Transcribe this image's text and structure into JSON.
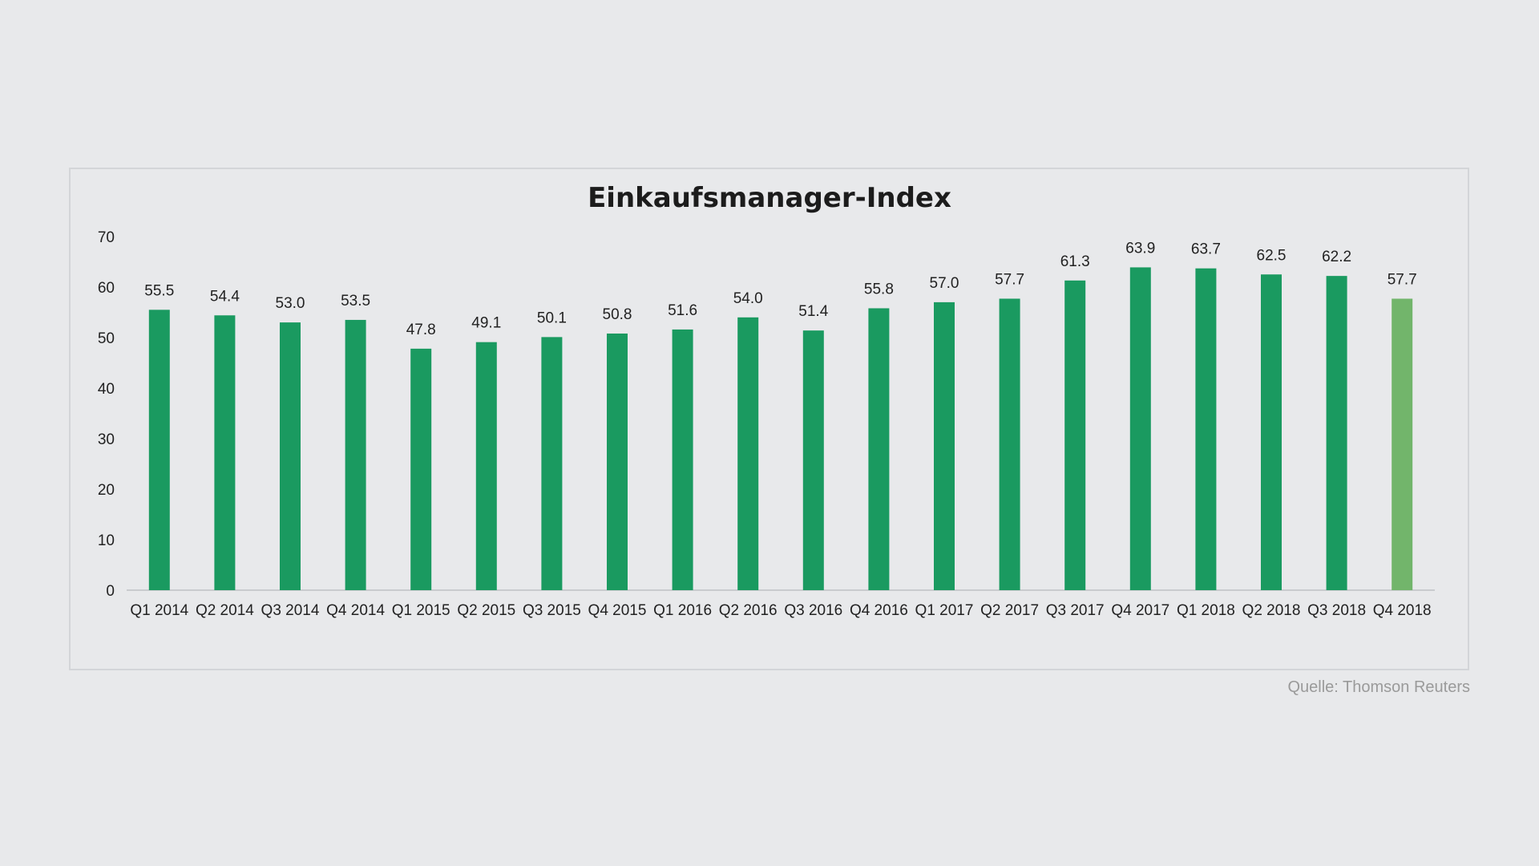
{
  "chart_data": {
    "type": "bar",
    "title": "Einkaufsmanager-Index",
    "xlabel": "",
    "ylabel": "",
    "ylim": [
      0,
      70
    ],
    "yticks": [
      0,
      10,
      20,
      30,
      40,
      50,
      60,
      70
    ],
    "grid": false,
    "legend": "none",
    "categories": [
      "Q1 2014",
      "Q2 2014",
      "Q3 2014",
      "Q4 2014",
      "Q1 2015",
      "Q2 2015",
      "Q3 2015",
      "Q4 2015",
      "Q1 2016",
      "Q2 2016",
      "Q3 2016",
      "Q4 2016",
      "Q1 2017",
      "Q2 2017",
      "Q3 2017",
      "Q4 2017",
      "Q1 2018",
      "Q2 2018",
      "Q3 2018",
      "Q4 2018"
    ],
    "values": [
      55.5,
      54.4,
      53.0,
      53.5,
      47.8,
      49.1,
      50.1,
      50.8,
      51.6,
      54.0,
      51.4,
      55.8,
      57.0,
      57.7,
      61.3,
      63.9,
      63.7,
      62.5,
      62.2,
      57.7
    ],
    "value_labels": [
      "55.5",
      "54.4",
      "53.0",
      "53.5",
      "47.8",
      "49.1",
      "50.1",
      "50.8",
      "51.6",
      "54.0",
      "51.4",
      "55.8",
      "57.0",
      "57.7",
      "61.3",
      "63.9",
      "63.7",
      "62.5",
      "62.2",
      "57.7"
    ],
    "colors": {
      "bar": "#1a9a60",
      "highlight_bar": "#72b56b",
      "axis": "#c9cbce"
    },
    "highlight_index": 19
  },
  "source": "Quelle: Thomson Reuters"
}
